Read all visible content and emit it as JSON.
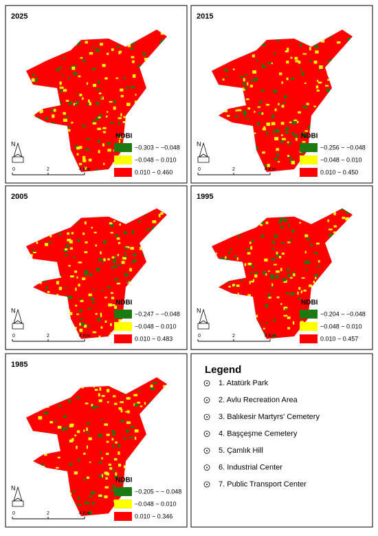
{
  "panels": [
    {
      "year": "2025",
      "legend_title": "NDBI",
      "classes": [
        "−0.303 − −0.048",
        "−0.048 − 0.010",
        "0.010 − 0.460"
      ],
      "scale": [
        "0",
        "2",
        "4 Km"
      ],
      "north": "N"
    },
    {
      "year": "2015",
      "legend_title": "NDBI",
      "classes": [
        "−0.256 − −0.048",
        "−0.048 − 0.010",
        "0.010 − 0.450"
      ],
      "scale": [
        "0",
        "2",
        "4 Km"
      ],
      "north": "N"
    },
    {
      "year": "2005",
      "legend_title": "NDBI",
      "classes": [
        "−0.247 − −0.048",
        "−0.048 − 0.010",
        "0.010 − 0.483"
      ],
      "scale": [
        "0",
        "2",
        "4 Km"
      ],
      "north": "N"
    },
    {
      "year": "1995",
      "legend_title": "NDBI",
      "classes": [
        "−0.204 − −0.048",
        "−0.048 − 0.010",
        "0.010 − 0.457"
      ],
      "scale": [
        "0",
        "2",
        "4 Km"
      ],
      "north": "N"
    },
    {
      "year": "1985",
      "legend_title": "NDBI",
      "classes": [
        "−0.205 − − 0.048",
        "−0.048 − 0.010",
        "0.010 − 0.346"
      ],
      "scale": [
        "0",
        "2",
        "4 Km"
      ],
      "north": "N"
    }
  ],
  "class_colors": [
    "#1c7a12",
    "#ffff00",
    "#ff0000"
  ],
  "legend": {
    "title": "Legend",
    "items": [
      "1. Atatürk Park",
      "2. Avlu Recreation Area",
      "3. Balıkesir Martyrs' Cemetery",
      "4. Başçeşme Cemetery",
      "5. Çamlık  Hill",
      "6. Industrial Center",
      "7. Public Transport Center"
    ]
  }
}
